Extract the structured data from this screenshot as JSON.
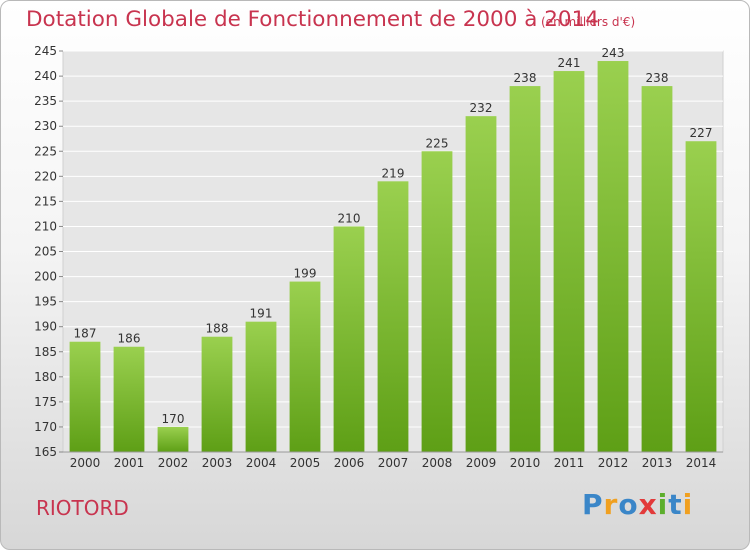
{
  "header": {
    "title": "Dotation Globale de Fonctionnement de 2000 à 2014",
    "unit": "(en milliers d'€)"
  },
  "footer": {
    "commune": "RIOTORD",
    "logo_text": "Proxiti"
  },
  "colors": {
    "accent": "#c8344f",
    "bar_top": "#9ad04f",
    "bar_bottom": "#5e9f16",
    "grid": "#ffffff"
  },
  "chart_data": {
    "type": "bar",
    "title": "Dotation Globale de Fonctionnement de 2000 à 2014",
    "subtitle": "(en milliers d'€)",
    "xlabel": "",
    "ylabel": "",
    "categories": [
      "2000",
      "2001",
      "2002",
      "2003",
      "2004",
      "2005",
      "2006",
      "2007",
      "2008",
      "2009",
      "2010",
      "2011",
      "2012",
      "2013",
      "2014"
    ],
    "values": [
      187,
      186,
      170,
      188,
      191,
      199,
      210,
      219,
      225,
      232,
      238,
      241,
      243,
      238,
      227
    ],
    "ylim": [
      165,
      245
    ],
    "yticks": [
      165,
      170,
      175,
      180,
      185,
      190,
      195,
      200,
      205,
      210,
      215,
      220,
      225,
      230,
      235,
      240,
      245
    ],
    "grid": true,
    "data_labels": true
  }
}
